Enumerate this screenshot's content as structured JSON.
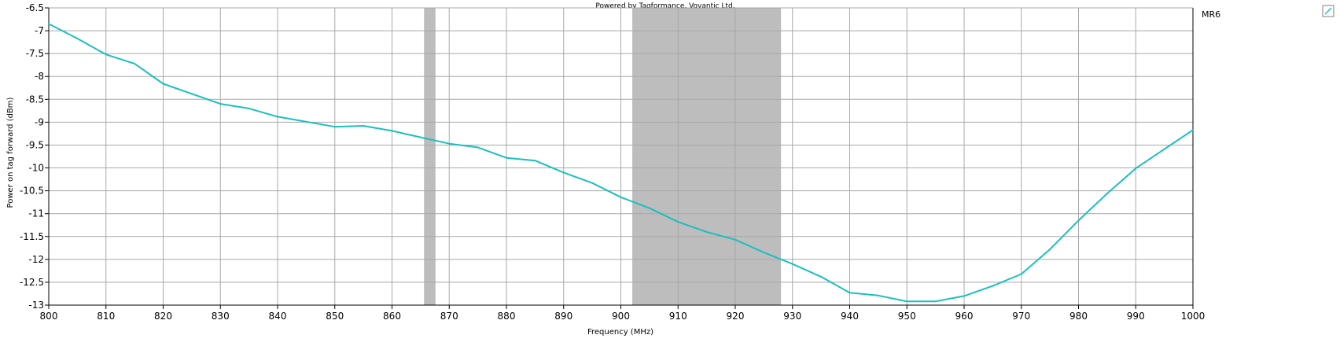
{
  "chart_data": {
    "type": "line",
    "credit": "Powered by Tagformance, Voyantic Ltd.",
    "xlabel": "Frequency (MHz)",
    "ylabel": "Power on tag forward (dBm)",
    "xlim": [
      800,
      1000
    ],
    "ylim": [
      -13,
      -6.5
    ],
    "x_ticks": [
      800,
      810,
      820,
      830,
      840,
      850,
      860,
      870,
      880,
      890,
      900,
      910,
      920,
      930,
      940,
      950,
      960,
      970,
      980,
      990,
      1000
    ],
    "y_ticks": [
      -6.5,
      -7,
      -7.5,
      -8,
      -8.5,
      -9,
      -9.5,
      -10,
      -10.5,
      -11,
      -11.5,
      -12,
      -12.5,
      -13
    ],
    "grid": true,
    "legend_position": "right",
    "shaded_bands": [
      {
        "from": 865.6,
        "to": 867.6,
        "color": "#bdbdbd"
      },
      {
        "from": 902,
        "to": 928,
        "color": "#bdbdbd"
      }
    ],
    "series": [
      {
        "name": "MR6",
        "color": "#1bbfbf",
        "x": [
          800,
          805,
          810,
          815,
          820,
          825,
          830,
          835,
          840,
          845,
          850,
          855,
          860,
          865,
          870,
          875,
          880,
          885,
          890,
          895,
          900,
          905,
          910,
          915,
          920,
          925,
          930,
          935,
          940,
          945,
          950,
          955,
          960,
          965,
          970,
          975,
          980,
          985,
          990,
          995,
          1000
        ],
        "y": [
          -6.85,
          -7.17,
          -7.52,
          -7.72,
          -8.16,
          -8.38,
          -8.6,
          -8.7,
          -8.88,
          -8.99,
          -9.1,
          -9.08,
          -9.19,
          -9.33,
          -9.47,
          -9.55,
          -9.78,
          -9.84,
          -10.1,
          -10.33,
          -10.64,
          -10.88,
          -11.18,
          -11.4,
          -11.57,
          -11.85,
          -12.1,
          -12.38,
          -12.73,
          -12.79,
          -12.92,
          -12.92,
          -12.8,
          -12.58,
          -12.32,
          -11.78,
          -11.15,
          -10.56,
          -10.01,
          -9.59,
          -9.17
        ]
      }
    ]
  }
}
